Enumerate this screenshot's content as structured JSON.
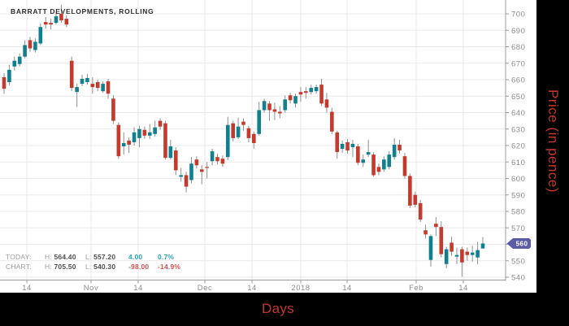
{
  "title": "BARRATT DEVELOPMENTS, ROLLING",
  "legend": {
    "rows": [
      {
        "label": "TODAY:",
        "high_label": "H:",
        "high": "564.40",
        "low_label": "L:",
        "low": "557.20",
        "change": "4.00",
        "change_pct": "0.7%",
        "direction": "up"
      },
      {
        "label": "CHART:",
        "high_label": "H:",
        "high": "705.50",
        "low_label": "L:",
        "low": "540.30",
        "change": "-98.00",
        "change_pct": "-14.9%",
        "direction": "down"
      }
    ]
  },
  "x_axis": {
    "title": "Days",
    "labels": [
      "14",
      "Nov",
      "14",
      "Dec",
      "14",
      "2018",
      "14",
      "Feb",
      "14"
    ]
  },
  "y_axis": {
    "title": "Price (in pence)",
    "min": 540,
    "max": 700,
    "step": 10,
    "label_hidden_by_badge": 560
  },
  "last_price_marker": {
    "label": "560",
    "value": 560.5
  },
  "colors": {
    "up": "#10808e",
    "down": "#c23b2e",
    "wick": "#8f8f8f",
    "grid": "#e9e9e9",
    "axis": "#9b9b9b",
    "tick_text": "#8c8c8c",
    "title_text": "#2e2e2e",
    "axis_title": "#c4372b",
    "legend_up": "#2ba3b2",
    "legend_down": "#d9534f",
    "badge_bg": "#5b5ea6",
    "badge_text": "#ffffff",
    "panel_bg": "#000000",
    "chart_bg": "#ffffff"
  },
  "chart_data": {
    "type": "candlestick",
    "title": "BARRATT DEVELOPMENTS, ROLLING",
    "xlabel": "Days",
    "ylabel": "Price (in pence)",
    "ylim": [
      540,
      700
    ],
    "y_tick_step": 10,
    "x_tick_labels": [
      "14",
      "Nov",
      "14",
      "Dec",
      "14",
      "2018",
      "14",
      "Feb",
      "14"
    ],
    "today": {
      "high": 564.4,
      "low": 557.2,
      "change": 4.0,
      "change_pct": 0.7
    },
    "chart": {
      "high": 705.5,
      "low": 540.3,
      "change": -98.0,
      "change_pct": -14.9
    },
    "last_price": 560.5,
    "candles_format": [
      "open",
      "high",
      "low",
      "close"
    ],
    "candles": [
      [
        661.5,
        664,
        651.5,
        654.5
      ],
      [
        658.5,
        669,
        656.5,
        666
      ],
      [
        668,
        674,
        665.5,
        671.5
      ],
      [
        669.5,
        676,
        668,
        674
      ],
      [
        674,
        684,
        673,
        681
      ],
      [
        684,
        686,
        677,
        679
      ],
      [
        678,
        685,
        676.5,
        683
      ],
      [
        682,
        694,
        681,
        692
      ],
      [
        695,
        698,
        691,
        693.5
      ],
      [
        694.5,
        697,
        690.5,
        693.5
      ],
      [
        694.5,
        701,
        693.5,
        698.5
      ],
      [
        700,
        705.5,
        694.5,
        696
      ],
      [
        697,
        699,
        692,
        693.5
      ],
      [
        671.5,
        674,
        653,
        655
      ],
      [
        652.5,
        657.5,
        643.5,
        655.5
      ],
      [
        657.5,
        663,
        656,
        660.5
      ],
      [
        658.5,
        663.5,
        657,
        661
      ],
      [
        657.5,
        661.5,
        651.5,
        655.5
      ],
      [
        658.5,
        660,
        653,
        655
      ],
      [
        653,
        659,
        652,
        657.5
      ],
      [
        659,
        660.5,
        648.5,
        651.5
      ],
      [
        648.5,
        650.5,
        633,
        635
      ],
      [
        632.5,
        634,
        612,
        613.5
      ],
      [
        619.5,
        628,
        614.5,
        621.5
      ],
      [
        623,
        625,
        615.5,
        620.5
      ],
      [
        622,
        631,
        620,
        628
      ],
      [
        624.5,
        632,
        619,
        630
      ],
      [
        629.5,
        631.5,
        624,
        626
      ],
      [
        626,
        633,
        624,
        628
      ],
      [
        627,
        635,
        625.5,
        631
      ],
      [
        635,
        636.5,
        629.5,
        631.5
      ],
      [
        633.5,
        635,
        611.5,
        612.5
      ],
      [
        612.5,
        623.5,
        611.5,
        619.5
      ],
      [
        617,
        619,
        602,
        605
      ],
      [
        601,
        606.5,
        598,
        602
      ],
      [
        602,
        604,
        591.5,
        595
      ],
      [
        599,
        613,
        597,
        609
      ],
      [
        611.5,
        613.5,
        606,
        608
      ],
      [
        605.5,
        608,
        596.5,
        604
      ],
      [
        607,
        610,
        600,
        606.5
      ],
      [
        610.5,
        618,
        608,
        616.5
      ],
      [
        613,
        615,
        608.5,
        610.5
      ],
      [
        612,
        614,
        607,
        609
      ],
      [
        613,
        637.5,
        611,
        632.5
      ],
      [
        633.5,
        635,
        622.5,
        624.5
      ],
      [
        625,
        637,
        624,
        631.5
      ],
      [
        634.5,
        636.5,
        629,
        632.5
      ],
      [
        630.5,
        632,
        622,
        624.5
      ],
      [
        627,
        628.5,
        618,
        621.5
      ],
      [
        627,
        646.5,
        626,
        641.5
      ],
      [
        641.5,
        648.5,
        640,
        647
      ],
      [
        645.5,
        647,
        635,
        641.5
      ],
      [
        642,
        646,
        635.5,
        640.5
      ],
      [
        640.5,
        644,
        636.5,
        639.5
      ],
      [
        641.5,
        650.5,
        640,
        648
      ],
      [
        650.5,
        652,
        645.5,
        647.5
      ],
      [
        645.5,
        651.5,
        643,
        650
      ],
      [
        652.5,
        655.5,
        646.5,
        651
      ],
      [
        653,
        655.5,
        648.5,
        652
      ],
      [
        652.5,
        657,
        651,
        655
      ],
      [
        653,
        657,
        651.5,
        655.5
      ],
      [
        657,
        660.5,
        644,
        645.5
      ],
      [
        648,
        652,
        640,
        643
      ],
      [
        640.5,
        643,
        627,
        628.5
      ],
      [
        628,
        629,
        612,
        616
      ],
      [
        618,
        623,
        615.5,
        621
      ],
      [
        622,
        624,
        615,
        617
      ],
      [
        619,
        623.5,
        613,
        621
      ],
      [
        619.5,
        621,
        608,
        609.5
      ],
      [
        609.5,
        614.5,
        607,
        611.5
      ],
      [
        614.5,
        623.5,
        613,
        616
      ],
      [
        614.5,
        616,
        601,
        602
      ],
      [
        607,
        609,
        602,
        604
      ],
      [
        605.5,
        613.5,
        604,
        611.5
      ],
      [
        607,
        616.5,
        605.5,
        614.5
      ],
      [
        613,
        624.5,
        611.5,
        620.5
      ],
      [
        620.5,
        623.5,
        615,
        617
      ],
      [
        613.5,
        615.5,
        600,
        601.5
      ],
      [
        601.5,
        603,
        582,
        583.5
      ],
      [
        590,
        592,
        582.5,
        584
      ],
      [
        585,
        587,
        573.5,
        575
      ],
      [
        568.5,
        572,
        563.5,
        566
      ],
      [
        550.5,
        566,
        546.5,
        565
      ],
      [
        572.5,
        576.5,
        565,
        570.5
      ],
      [
        570.5,
        574,
        552,
        554
      ],
      [
        548,
        558.5,
        545.5,
        557
      ],
      [
        561,
        564.5,
        553,
        555.5
      ],
      [
        552.5,
        558,
        548,
        553.5
      ],
      [
        557,
        558.5,
        540.3,
        549
      ],
      [
        555.5,
        558,
        550,
        553.5
      ],
      [
        553.5,
        559,
        549.5,
        555
      ],
      [
        552,
        561.5,
        548,
        556.5
      ],
      [
        557.5,
        564.4,
        557.2,
        560.5
      ]
    ]
  }
}
